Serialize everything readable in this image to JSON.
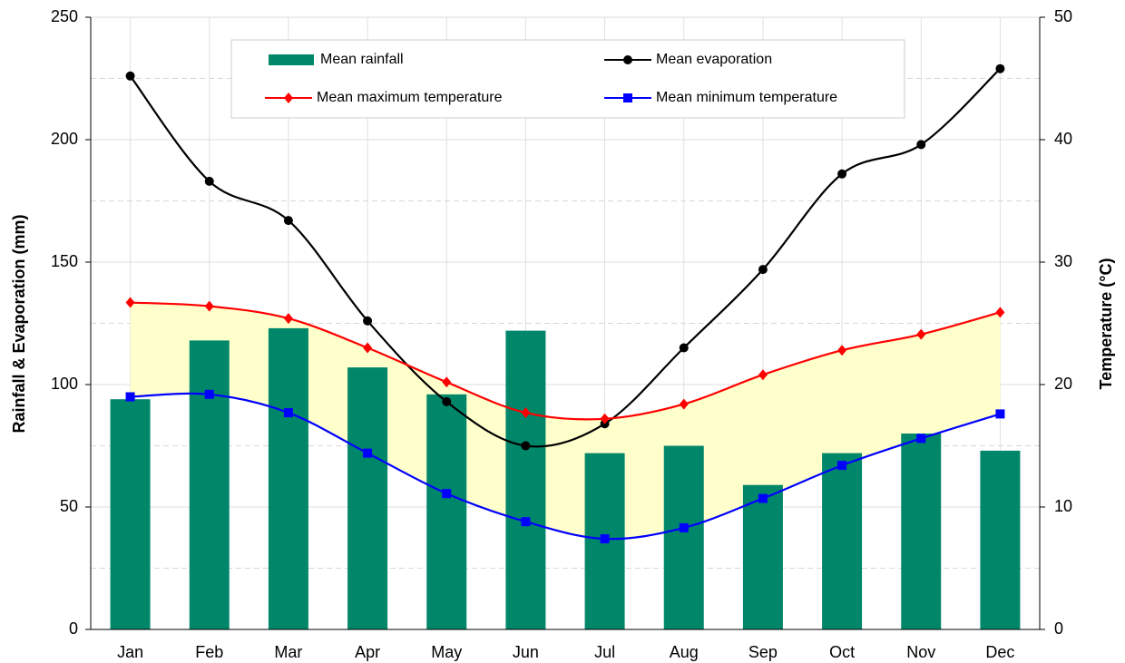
{
  "chart_data": {
    "type": "bar-line",
    "categories": [
      "Jan",
      "Feb",
      "Mar",
      "Apr",
      "May",
      "Jun",
      "Jul",
      "Aug",
      "Sep",
      "Oct",
      "Nov",
      "Dec"
    ],
    "ylabel": "Rainfall & Evaporation (mm)",
    "y2label": "Temperature (°C)",
    "ylim": [
      0,
      250
    ],
    "yticks": [
      0,
      50,
      100,
      150,
      200,
      250
    ],
    "y2lim": [
      0,
      50
    ],
    "y2ticks": [
      0,
      10,
      20,
      30,
      40,
      50
    ],
    "y2minorticks": [
      5,
      15,
      25,
      35,
      45
    ],
    "grid": true,
    "band_color": "#ffffcc",
    "series": [
      {
        "name": "Mean rainfall",
        "kind": "bar",
        "color": "#00876a",
        "values": [
          94,
          118,
          123,
          107,
          96,
          122,
          72,
          75,
          59,
          72,
          80,
          73
        ]
      },
      {
        "name": "Mean evaporation",
        "kind": "line",
        "marker": "circle",
        "color": "#000000",
        "values": [
          226,
          183,
          167,
          126,
          93,
          75,
          84,
          115,
          147,
          186,
          198,
          229
        ]
      },
      {
        "name": "Mean maximum temperature",
        "kind": "line",
        "marker": "diamond",
        "axis": "y2",
        "color": "#ff0000",
        "values": [
          26.7,
          26.4,
          25.4,
          23.0,
          20.2,
          17.7,
          17.2,
          18.4,
          20.8,
          22.8,
          24.1,
          25.9
        ]
      },
      {
        "name": "Mean minimum temperature",
        "kind": "line",
        "marker": "square",
        "axis": "y2",
        "color": "#0000ff",
        "values": [
          19.0,
          19.2,
          17.7,
          14.4,
          11.1,
          8.8,
          7.4,
          8.3,
          10.7,
          13.4,
          15.6,
          17.6
        ]
      }
    ]
  }
}
